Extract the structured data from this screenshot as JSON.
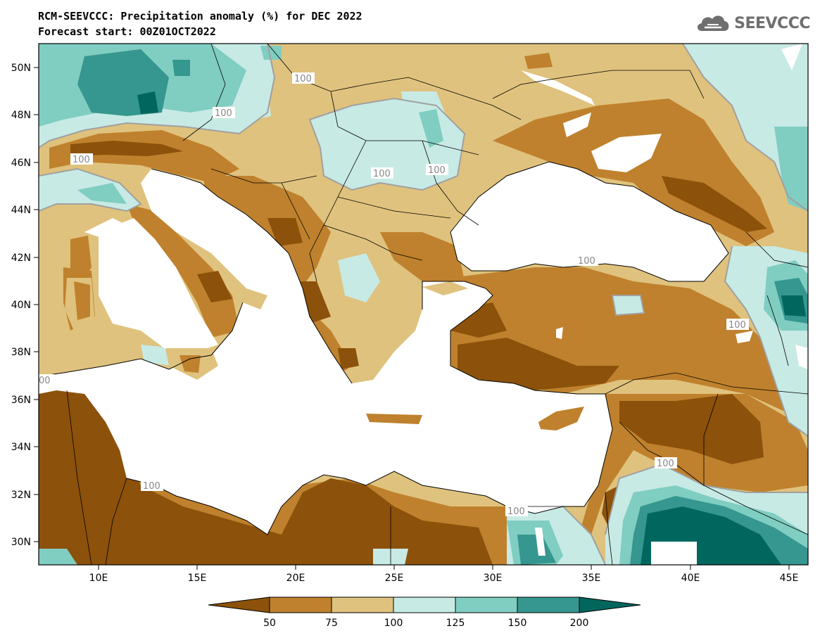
{
  "header": {
    "title": "RCM-SEEVCCC: Precipitation anomaly (%) for DEC 2022",
    "subtitle": "Forecast start: 00Z01OCT2022",
    "logo_text": "SEEVCCC"
  },
  "map": {
    "lat_labels": [
      "50N",
      "48N",
      "46N",
      "44N",
      "42N",
      "40N",
      "38N",
      "36N",
      "34N",
      "32N",
      "30N"
    ],
    "lon_labels": [
      "10E",
      "15E",
      "20E",
      "25E",
      "30E",
      "35E",
      "40E",
      "45E"
    ],
    "contour_label": "100",
    "colors": {
      "lt50": "#8c510a",
      "b50_75": "#bf812d",
      "b75_100": "#dfc27d",
      "b100_125": "#c7eae5",
      "b125_150": "#80cdc1",
      "b150_200": "#35978f",
      "gt200": "#01665e",
      "sea": "#ffffff",
      "contour": "#a0a0a0"
    }
  },
  "colorbar": {
    "labels": [
      "50",
      "75",
      "100",
      "125",
      "150",
      "200"
    ],
    "colors": [
      "#8c510a",
      "#bf812d",
      "#dfc27d",
      "#c7eae5",
      "#80cdc1",
      "#35978f",
      "#01665e"
    ]
  }
}
